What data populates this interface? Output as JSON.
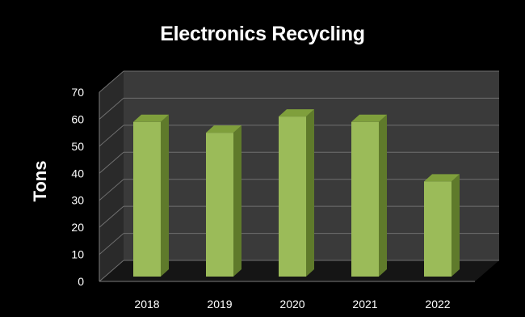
{
  "chart_data": {
    "type": "bar",
    "title": "Electronics Recycling",
    "xlabel": "",
    "ylabel": "Tons",
    "categories": [
      "2018",
      "2019",
      "2020",
      "2021",
      "2022"
    ],
    "values": [
      59,
      55,
      61,
      59,
      37
    ],
    "ylim": [
      0,
      70
    ],
    "yticks": [
      0,
      10,
      20,
      30,
      40,
      50,
      60,
      70
    ],
    "grid": true,
    "three_d": true,
    "bar_color": "#9bbb59",
    "background": "#000000",
    "wall_color": "#3a3a3a",
    "text_color": "#ffffff"
  }
}
